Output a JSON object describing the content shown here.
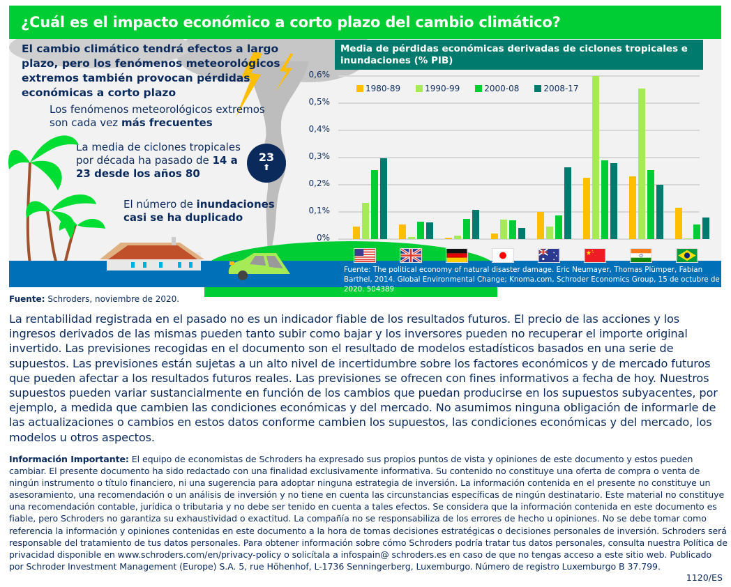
{
  "header": {
    "title": "¿Cuál es el impacto económico a corto plazo del cambio climático?"
  },
  "left_panel": {
    "lead": "El cambio climático tendrá efectos a largo plazo, pero los fenómenos meteorológicos extremos también provocan pérdidas económicas a corto plazo",
    "fact1_normal": "Los fenómenos meteorológicos extremos son cada vez ",
    "fact1_bold": "más frecuentes",
    "fact2_normal": "La media de ciclones tropicales por década ha pasado de ",
    "fact2_bold": "14 a 23 desde los años 80",
    "fact3_normal": "El número de ",
    "fact3_bold": "inundaciones casi se ha duplicado",
    "badge_number": "23",
    "badge_arrow": "⬆"
  },
  "chart": {
    "title": "Media de pérdidas económicas derivadas de ciclones tropicales e inundaciones (% PIB)",
    "source": "Fuente: The political economy of natural disaster damage. Eric Neumayer, Thomas Plümper, Fabian Barthel, 2014. Global Environmental Change; Knoma.com, Schroder Economics Group, 15 de octubre de 2020. 504389",
    "yticks": [
      "0,6%",
      "0,5%",
      "0,4%",
      "0,3%",
      "0,2%",
      "0,1%",
      "0%"
    ]
  },
  "chart_data": {
    "type": "bar",
    "title": "Media de pérdidas económicas derivadas de ciclones tropicales e inundaciones (% PIB)",
    "xlabel": "",
    "ylabel": "% PIB",
    "ylim": [
      0,
      0.6
    ],
    "yticks": [
      0,
      0.1,
      0.2,
      0.3,
      0.4,
      0.5,
      0.6
    ],
    "grid": true,
    "legend_position": "top-left",
    "categories": [
      "Estados Unidos",
      "Reino Unido",
      "Alemania",
      "Japón",
      "Australia",
      "China",
      "India",
      "Brasil"
    ],
    "series": [
      {
        "name": "1980-89",
        "color": "#ffbf00",
        "values": [
          0.046,
          0.055,
          0.006,
          0.02,
          0.1,
          0.225,
          0.23,
          0.115
        ]
      },
      {
        "name": "1990-99",
        "color": "#a6eb55",
        "values": [
          0.133,
          0.009,
          0.014,
          0.072,
          0.047,
          0.6,
          0.555,
          0.002
        ]
      },
      {
        "name": "2000-08",
        "color": "#00cc33",
        "values": [
          0.254,
          0.063,
          0.074,
          0.069,
          0.088,
          0.29,
          0.255,
          0.055
        ]
      },
      {
        "name": "2008-17",
        "color": "#007a6c",
        "values": [
          0.297,
          0.061,
          0.107,
          0.041,
          0.263,
          0.28,
          0.2,
          0.08
        ]
      }
    ]
  },
  "footer": {
    "fuente_label": "Fuente:",
    "fuente_text": " Schroders, noviembre de 2020.",
    "disclaimer": "La rentabilidad registrada en el pasado no es un indicador fiable de los resultados futuros. El precio de las acciones y los ingresos derivados de las mismas pueden tanto subir como bajar y los inversores pueden no recuperar el importe original invertido. Las previsiones recogidas en el documento son el resultado de modelos estadísticos basados en una serie de supuestos. Las previsiones están sujetas a un alto nivel de incertidumbre sobre los factores económicos y de mercado futuros que pueden afectar a los resultados futuros reales. Las previsiones se ofrecen con fines informativos a fecha de hoy. Nuestros supuestos pueden variar sustancialmente en función de los cambios que puedan producirse en los supuestos subyacentes, por ejemplo, a medida que cambien las condiciones económicas y del mercado. No asumimos ninguna obligación de informarle de las actualizaciones o cambios en estos datos conforme cambien los supuestos, las condiciones económicas y del mercado, los modelos u otros aspectos.",
    "important_label": "Información Importante:",
    "important_text": " El equipo de economistas de Schroders ha expresado sus propios puntos de vista y opiniones de este documento y estos pueden cambiar. El presente documento ha sido redactado con una finalidad exclusivamente informativa. Su contenido no constituye una oferta de compra o venta de ningún instrumento o título financiero, ni una sugerencia para adoptar ninguna estrategia de inversión. La información contenida en el presente no constituye un asesoramiento, una recomendación o un análisis de inversión y no tiene en cuenta las circunstancias específicas de ningún destinatario. Este material no constituye una recomendación contable, jurídica o tributaria y no debe ser tenido en cuenta a tales efectos. Se considera que la información contenida en este documento es fiable, pero Schroders no garantiza su exhaustividad o exactitud. La compañía no se responsabiliza de los errores de hecho u opiniones. No se debe tomar como referencia la información y opiniones contenidas en este documento a la hora de tomas decisiones estratégicas o decisiones personales de inversión. Schroders será responsable del tratamiento de tus datos personales. Para obtener información sobre cómo Schroders podría tratar tus datos personales, consulta nuestra Política de privacidad disponible en www.schroders.com/en/privacy-policy o solicítala a infospain@ schroders.es en caso de que no tengas acceso a este sitio web. Publicado por Schroder Investment Management (Europe) S.A. 5, rue Höhenhof, L-1736 Senningerberg, Luxemburgo. Número de registro Luxemburgo B 37.799.",
    "code": "1120/ES"
  },
  "icons": {
    "flags": [
      "us-flag-icon",
      "uk-flag-icon",
      "germany-flag-icon",
      "japan-flag-icon",
      "australia-flag-icon",
      "china-flag-icon",
      "india-flag-icon",
      "brazil-flag-icon"
    ]
  }
}
